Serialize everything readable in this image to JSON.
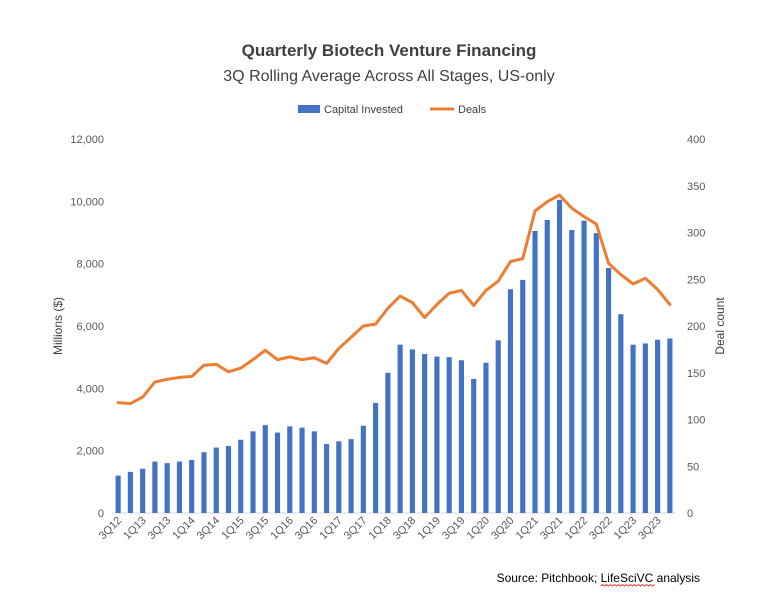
{
  "chart_data": {
    "type": "bar+line",
    "title": "Quarterly Biotech Venture Financing",
    "subtitle": "3Q Rolling Average Across All Stages, US-only",
    "ylabel_left": "Millions ($)",
    "ylabel_right": "Deal count",
    "ylim_left": [
      0,
      12000
    ],
    "ylim_right": [
      0,
      400
    ],
    "yticks_left": [
      "0",
      "2,000",
      "4,000",
      "6,000",
      "8,000",
      "10,000",
      "12,000"
    ],
    "yticks_right": [
      "0",
      "50",
      "100",
      "150",
      "200",
      "250",
      "300",
      "350",
      "400"
    ],
    "legend": "top-center",
    "x": [
      "3Q12",
      "4Q12",
      "1Q13",
      "2Q13",
      "3Q13",
      "4Q13",
      "1Q14",
      "2Q14",
      "3Q14",
      "4Q14",
      "1Q15",
      "2Q15",
      "3Q15",
      "4Q15",
      "1Q16",
      "2Q16",
      "3Q16",
      "4Q16",
      "1Q17",
      "2Q17",
      "3Q17",
      "4Q17",
      "1Q18",
      "2Q18",
      "3Q18",
      "4Q18",
      "1Q19",
      "2Q19",
      "3Q19",
      "4Q19",
      "1Q20",
      "2Q20",
      "3Q20",
      "4Q20",
      "1Q21",
      "2Q21",
      "3Q21",
      "4Q21",
      "1Q22",
      "2Q22",
      "3Q22",
      "4Q22",
      "1Q23",
      "2Q23",
      "3Q23",
      "4Q23"
    ],
    "x_tick_labels": [
      "3Q12",
      "1Q13",
      "3Q13",
      "1Q14",
      "3Q14",
      "1Q15",
      "3Q15",
      "1Q16",
      "3Q16",
      "1Q17",
      "3Q17",
      "1Q18",
      "3Q18",
      "1Q19",
      "3Q19",
      "1Q20",
      "3Q20",
      "1Q21",
      "3Q21",
      "1Q22",
      "3Q22",
      "1Q23",
      "3Q23"
    ],
    "series": [
      {
        "name": "Capital Invested",
        "type": "bar",
        "axis": "left",
        "color": "#4472c4",
        "values": [
          1200,
          1320,
          1420,
          1650,
          1600,
          1650,
          1700,
          1950,
          2100,
          2150,
          2350,
          2620,
          2820,
          2580,
          2780,
          2740,
          2620,
          2210,
          2300,
          2370,
          2800,
          3530,
          4500,
          5400,
          5250,
          5100,
          5020,
          5000,
          4900,
          4300,
          4820,
          5540,
          7180,
          7480,
          9050,
          9400,
          10050,
          9080,
          9380,
          8980,
          7860,
          6380,
          5400,
          5440,
          5560,
          5600
        ]
      },
      {
        "name": "Deals",
        "type": "line",
        "axis": "right",
        "color": "#ed7d31",
        "values": [
          118,
          117,
          124,
          140,
          143,
          145,
          146,
          158,
          159,
          151,
          155,
          164,
          174,
          164,
          167,
          164,
          166,
          160,
          176,
          188,
          200,
          202,
          219,
          232,
          225,
          209,
          223,
          235,
          238,
          222,
          238,
          248,
          269,
          272,
          323,
          333,
          340,
          326,
          317,
          309,
          267,
          255,
          245,
          251,
          239,
          223
        ]
      }
    ]
  },
  "source": {
    "prefix": "Source: Pitchbook; ",
    "flagged_word": "LifeSciVC",
    "suffix": " analysis"
  }
}
